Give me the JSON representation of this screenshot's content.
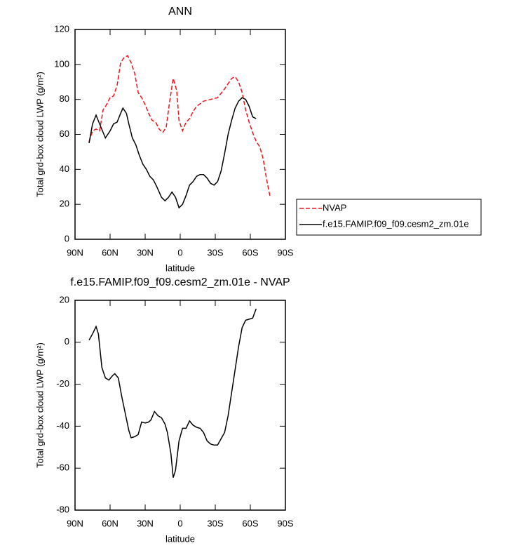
{
  "chart_data": [
    {
      "type": "line",
      "title": "ANN",
      "xlabel": "latitude",
      "ylabel": "Total grd-box cloud LWP (g/m²)",
      "xlim": [
        90,
        -90
      ],
      "xticks": [
        {
          "value": 90,
          "label": "90N"
        },
        {
          "value": 60,
          "label": "60N"
        },
        {
          "value": 30,
          "label": "30N"
        },
        0,
        {
          "value": -30,
          "label": "30S"
        },
        {
          "value": -60,
          "label": "60S"
        },
        {
          "value": -90,
          "label": "90S"
        }
      ],
      "ylim": [
        0,
        120
      ],
      "yticks": [
        0,
        20,
        40,
        60,
        80,
        100,
        120
      ],
      "series": [
        {
          "name": "NVAP",
          "color": "#e8141c",
          "style": "dashed",
          "x": [
            78,
            75,
            72,
            69,
            66,
            63,
            60,
            57,
            54,
            51,
            48,
            45,
            42,
            39,
            36,
            33,
            30,
            27,
            24,
            21,
            18,
            15,
            12,
            9,
            6,
            3,
            1,
            -2,
            -5,
            -8,
            -11,
            -14,
            -20,
            -26,
            -32,
            -38,
            -44,
            -47,
            -50,
            -53,
            -56,
            -59,
            -62,
            -65,
            -68,
            -71,
            -74,
            -77
          ],
          "values": [
            55.8,
            62,
            63,
            62,
            74,
            77,
            81,
            82,
            88,
            101,
            104,
            105,
            101,
            95,
            84,
            81,
            77,
            72,
            68,
            67,
            63,
            61,
            64,
            79,
            92,
            85,
            68,
            62,
            67,
            69,
            73,
            76,
            79,
            80,
            81,
            86,
            92,
            93,
            90,
            84,
            74,
            67,
            61,
            56,
            53,
            46,
            34,
            24
          ]
        },
        {
          "name": "f.e15.FAMIP.f09_f09.cesm2_zm.01e",
          "color": "#000000",
          "style": "solid",
          "x": [
            78,
            75,
            72,
            69,
            64,
            60,
            57,
            54,
            51,
            49,
            46,
            44,
            41,
            38,
            35,
            32,
            29,
            26,
            23,
            20,
            16,
            13,
            10,
            7,
            4,
            1,
            -2,
            -5,
            -8,
            -11,
            -14,
            -17,
            -20,
            -23,
            -26,
            -29,
            -32,
            -35,
            -38,
            -41,
            -44,
            -47,
            -50,
            -53,
            -56,
            -59,
            -62,
            -65
          ],
          "values": [
            55,
            66,
            71,
            66,
            58,
            62,
            66,
            67,
            72,
            75,
            72,
            66,
            58,
            54,
            48,
            43,
            40,
            36,
            34,
            30,
            24,
            22,
            24,
            27,
            24,
            18,
            20,
            25,
            31,
            33,
            36,
            37,
            37,
            35,
            32,
            31,
            33,
            39,
            49,
            60,
            68,
            75,
            79,
            81,
            80,
            76,
            70,
            69
          ]
        }
      ]
    },
    {
      "type": "line",
      "title": "f.e15.FAMIP.f09_f09.cesm2_zm.01e - NVAP",
      "xlabel": "latitude",
      "ylabel": "Total grd-box cloud LWP (g/m²)",
      "xlim": [
        90,
        -90
      ],
      "xticks": [
        {
          "value": 90,
          "label": "90N"
        },
        {
          "value": 60,
          "label": "60N"
        },
        {
          "value": 30,
          "label": "30N"
        },
        0,
        {
          "value": -30,
          "label": "30S"
        },
        {
          "value": -60,
          "label": "60S"
        },
        {
          "value": -90,
          "label": "90S"
        }
      ],
      "ylim": [
        -80,
        20
      ],
      "yticks": [
        -80,
        -60,
        -40,
        -20,
        0,
        20
      ],
      "series": [
        {
          "color": "#000000",
          "style": "solid",
          "x": [
            78,
            75,
            72,
            70,
            67,
            64,
            61,
            58,
            56,
            53,
            50,
            47,
            44,
            42,
            39,
            36,
            33,
            30,
            27,
            25,
            22,
            19,
            16,
            13,
            11,
            8,
            6,
            4,
            1,
            -2,
            -5,
            -8,
            -11,
            -14,
            -17,
            -20,
            -23,
            -26,
            -29,
            -32,
            -35,
            -38,
            -41,
            -44,
            -47,
            -50,
            -53,
            -56,
            -59,
            -62,
            -65
          ],
          "values": [
            1,
            4,
            7.5,
            4,
            -12,
            -17,
            -18,
            -16,
            -15,
            -17,
            -26,
            -34,
            -42,
            -45.5,
            -45,
            -44,
            -38,
            -38.5,
            -38,
            -37,
            -33,
            -35,
            -36,
            -39,
            -43,
            -53,
            -64.5,
            -61,
            -47,
            -41,
            -41,
            -37.5,
            -39.5,
            -40.5,
            -41,
            -43,
            -47,
            -48.5,
            -49,
            -49,
            -46,
            -43,
            -35,
            -24,
            -13,
            -2,
            7,
            10.5,
            11,
            11.5,
            16
          ]
        }
      ]
    }
  ]
}
